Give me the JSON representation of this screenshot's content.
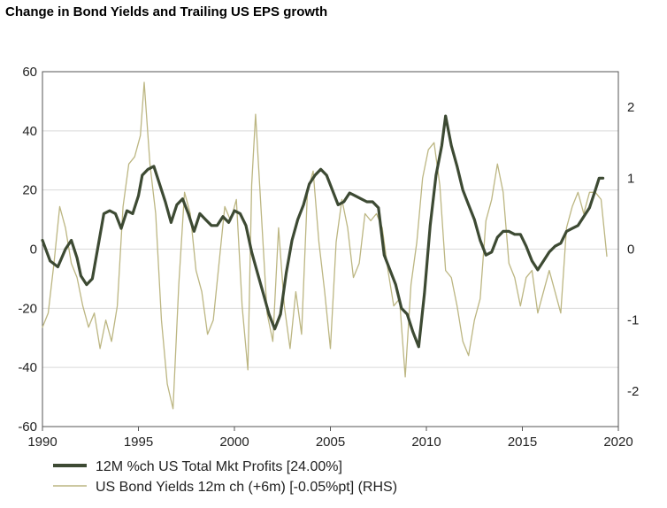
{
  "chart_data": {
    "type": "line",
    "title": "Change in Bond Yields and Trailing US EPS growth",
    "xlabel": "",
    "ylabel": "",
    "xlim": [
      1990,
      2020
    ],
    "ylim": [
      -60,
      60
    ],
    "y2lim": [
      -2.5,
      2.5
    ],
    "x_ticks": [
      1990,
      1995,
      2000,
      2005,
      2010,
      2015,
      2020
    ],
    "y_ticks": [
      60,
      40,
      20,
      0,
      -20,
      -40,
      -60
    ],
    "y2_ticks": [
      2,
      1,
      0,
      -1,
      -2
    ],
    "grid": "horizontal",
    "legend_position": "bottom-left",
    "series": [
      {
        "name": "12M %ch US Total Mkt Profits [24.00%]",
        "axis": "left",
        "color": "#3d4a33",
        "x": [
          1990.0,
          1990.4,
          1990.8,
          1991.2,
          1991.5,
          1991.8,
          1992.0,
          1992.3,
          1992.6,
          1992.9,
          1993.2,
          1993.5,
          1993.8,
          1994.1,
          1994.4,
          1994.7,
          1995.0,
          1995.2,
          1995.5,
          1995.8,
          1996.1,
          1996.4,
          1996.7,
          1997.0,
          1997.3,
          1997.6,
          1997.9,
          1998.2,
          1998.5,
          1998.8,
          1999.1,
          1999.4,
          1999.7,
          2000.0,
          2000.3,
          2000.6,
          2000.9,
          2001.2,
          2001.5,
          2001.8,
          2002.1,
          2002.4,
          2002.7,
          2003.0,
          2003.3,
          2003.6,
          2003.9,
          2004.2,
          2004.5,
          2004.8,
          2005.1,
          2005.4,
          2005.7,
          2006.0,
          2006.3,
          2006.6,
          2006.9,
          2007.2,
          2007.5,
          2007.8,
          2008.1,
          2008.4,
          2008.7,
          2009.0,
          2009.3,
          2009.6,
          2009.9,
          2010.2,
          2010.5,
          2010.8,
          2011.0,
          2011.3,
          2011.6,
          2011.9,
          2012.2,
          2012.5,
          2012.8,
          2013.1,
          2013.4,
          2013.7,
          2014.0,
          2014.3,
          2014.6,
          2014.9,
          2015.2,
          2015.5,
          2015.8,
          2016.1,
          2016.4,
          2016.7,
          2017.0,
          2017.3,
          2017.6,
          2017.9,
          2018.2,
          2018.5,
          2018.8,
          2019.0,
          2019.2
        ],
        "values": [
          3,
          -4,
          -6,
          0,
          3,
          -3,
          -9,
          -12,
          -10,
          1,
          12,
          13,
          12,
          7,
          13,
          12,
          18,
          25,
          27,
          28,
          22,
          16,
          9,
          15,
          17,
          12,
          6,
          12,
          10,
          8,
          8,
          11,
          9,
          13,
          12,
          8,
          -1,
          -8,
          -15,
          -22,
          -27,
          -22,
          -8,
          3,
          10,
          15,
          22,
          25,
          27,
          25,
          20,
          15,
          16,
          19,
          18,
          17,
          16,
          16,
          14,
          -2,
          -7,
          -12,
          -20,
          -22,
          -28,
          -33,
          -15,
          8,
          25,
          35,
          45,
          35,
          28,
          20,
          15,
          10,
          3,
          -2,
          -1,
          4,
          6,
          6,
          5,
          5,
          1,
          -4,
          -7,
          -4,
          -1,
          1,
          2,
          6,
          7,
          8,
          11,
          14,
          20,
          24,
          24
        ]
      },
      {
        "name": "US Bond Yields 12m ch (+6m) [-0.05%pt] (RHS)",
        "axis": "right",
        "color": "#bcb682",
        "x": [
          1990.0,
          1990.3,
          1990.6,
          1990.9,
          1991.2,
          1991.5,
          1991.8,
          1992.1,
          1992.4,
          1992.7,
          1993.0,
          1993.3,
          1993.6,
          1993.9,
          1994.2,
          1994.5,
          1994.8,
          1995.1,
          1995.3,
          1995.6,
          1995.9,
          1996.2,
          1996.5,
          1996.8,
          1997.1,
          1997.4,
          1997.7,
          1998.0,
          1998.3,
          1998.6,
          1998.9,
          1999.2,
          1999.5,
          1999.8,
          2000.1,
          2000.4,
          2000.7,
          2000.9,
          2001.1,
          2001.4,
          2001.7,
          2002.0,
          2002.3,
          2002.6,
          2002.9,
          2003.2,
          2003.5,
          2003.8,
          2004.1,
          2004.4,
          2004.7,
          2005.0,
          2005.3,
          2005.6,
          2005.9,
          2006.2,
          2006.5,
          2006.8,
          2007.1,
          2007.4,
          2007.7,
          2008.0,
          2008.3,
          2008.6,
          2008.9,
          2009.2,
          2009.5,
          2009.8,
          2010.1,
          2010.4,
          2010.7,
          2011.0,
          2011.3,
          2011.6,
          2011.9,
          2012.2,
          2012.5,
          2012.8,
          2013.1,
          2013.4,
          2013.7,
          2014.0,
          2014.3,
          2014.6,
          2014.9,
          2015.2,
          2015.5,
          2015.8,
          2016.1,
          2016.4,
          2016.7,
          2017.0,
          2017.3,
          2017.6,
          2017.9,
          2018.2,
          2018.5,
          2018.8,
          2019.1,
          2019.4
        ],
        "values": [
          -1.1,
          -0.9,
          -0.2,
          0.6,
          0.3,
          -0.2,
          -0.4,
          -0.8,
          -1.1,
          -0.9,
          -1.4,
          -1.0,
          -1.3,
          -0.8,
          0.6,
          1.2,
          1.3,
          1.6,
          2.35,
          1.2,
          0.5,
          -1.0,
          -1.9,
          -2.25,
          -0.5,
          0.8,
          0.5,
          -0.3,
          -0.6,
          -1.2,
          -1.0,
          -0.2,
          0.6,
          0.4,
          0.7,
          -0.8,
          -1.7,
          0.9,
          1.9,
          0.5,
          -0.9,
          -1.3,
          0.3,
          -0.8,
          -1.4,
          -0.6,
          -1.2,
          0.8,
          1.1,
          0.1,
          -0.6,
          -1.4,
          0.1,
          0.7,
          0.3,
          -0.4,
          -0.2,
          0.5,
          0.4,
          0.5,
          0.3,
          -0.3,
          -0.8,
          -0.7,
          -1.8,
          -0.5,
          0.1,
          1.0,
          1.4,
          1.5,
          0.9,
          -0.3,
          -0.4,
          -0.8,
          -1.3,
          -1.5,
          -1.0,
          -0.7,
          0.4,
          0.7,
          1.2,
          0.8,
          -0.2,
          -0.4,
          -0.8,
          -0.4,
          -0.3,
          -0.9,
          -0.6,
          -0.3,
          -0.6,
          -0.9,
          0.3,
          0.6,
          0.8,
          0.5,
          0.8,
          0.8,
          0.7,
          -0.1
        ]
      }
    ]
  }
}
